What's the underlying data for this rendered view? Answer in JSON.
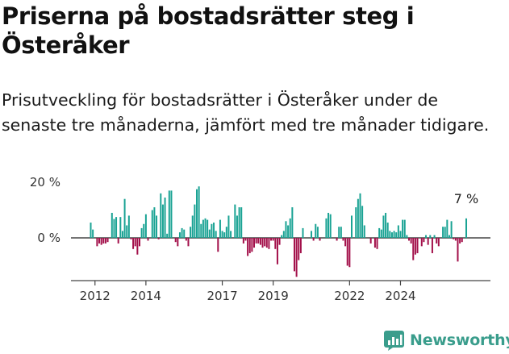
{
  "title": "Priserna på bostadsrätter steg i Österåker",
  "subtitle": "Prisutveckling för bostadsrätter i Österåker under de senaste tre månaderna, jämfört med tre månader tidigare.",
  "brand": {
    "name": "Newsworthy",
    "icon": "newsworthy-chart-logo-icon"
  },
  "colors": {
    "positive": "#1aa394",
    "negative": "#a3104a",
    "axis": "#555555",
    "brand": "#3a9d8c"
  },
  "chart_data": {
    "type": "bar",
    "x_start": "2011-11",
    "x_step": "month",
    "ylim": [
      -15,
      22
    ],
    "yticks": [
      0,
      20
    ],
    "ytick_labels": [
      "0 %",
      "20 %"
    ],
    "xticks": [
      "2012-01",
      "2014-01",
      "2017-01",
      "2019-01",
      "2022-01",
      "2024-01"
    ],
    "xtick_labels": [
      "2012",
      "2014",
      "2017",
      "2019",
      "2022",
      "2024"
    ],
    "end_label": "7 %",
    "grid": false,
    "values": [
      5.5,
      3.0,
      0.0,
      -3.0,
      -2.0,
      -2.5,
      -2.0,
      -2.0,
      -1.5,
      0.0,
      9.0,
      6.8,
      7.5,
      -2.0,
      7.5,
      2.5,
      14.0,
      4.5,
      8.0,
      -0.5,
      -4.0,
      -3.0,
      -6.0,
      -3.0,
      3.5,
      5.0,
      8.5,
      -1.0,
      0.0,
      10.0,
      11.0,
      8.0,
      -0.5,
      16.0,
      12.0,
      14.5,
      1.5,
      17.0,
      17.0,
      0.0,
      -1.5,
      -3.0,
      2.0,
      3.5,
      3.0,
      -1.0,
      -3.0,
      4.0,
      8.0,
      12.0,
      17.5,
      18.5,
      5.0,
      6.5,
      7.0,
      6.5,
      3.0,
      5.0,
      5.5,
      2.5,
      -5.0,
      6.5,
      2.5,
      2.0,
      4.0,
      8.0,
      2.5,
      0.0,
      12.0,
      8.0,
      11.0,
      11.0,
      -2.0,
      -1.0,
      -6.5,
      -5.5,
      -5.0,
      -3.5,
      -2.0,
      -2.0,
      -2.5,
      -3.5,
      -3.0,
      -3.5,
      -4.0,
      -1.0,
      -1.0,
      -4.0,
      -9.5,
      -2.5,
      1.0,
      2.5,
      6.0,
      4.5,
      7.0,
      11.0,
      -12.0,
      -14.0,
      -8.0,
      -5.5,
      3.5,
      0.0,
      0.0,
      0.0,
      2.5,
      -1.0,
      5.0,
      4.0,
      -1.0,
      0.0,
      0.0,
      7.0,
      9.0,
      8.5,
      0.0,
      0.0,
      -1.0,
      4.0,
      4.0,
      -1.0,
      -3.0,
      -10.0,
      -10.5,
      8.0,
      0.0,
      11.0,
      14.0,
      16.0,
      11.5,
      4.5,
      0.0,
      0.0,
      -2.0,
      0.0,
      -3.5,
      -4.0,
      3.5,
      3.0,
      8.0,
      9.0,
      5.5,
      2.5,
      2.0,
      2.5,
      2.0,
      4.5,
      2.5,
      6.5,
      6.5,
      1.0,
      -1.0,
      -2.0,
      -8.0,
      -6.0,
      -5.5,
      0.0,
      -3.0,
      -1.5,
      1.0,
      -2.5,
      1.0,
      -5.5,
      1.0,
      -2.0,
      -3.0,
      0.0,
      4.0,
      4.0,
      6.5,
      1.0,
      6.0,
      -0.5,
      -1.0,
      -8.5,
      -2.0,
      -1.5,
      0.0,
      7.0
    ]
  }
}
